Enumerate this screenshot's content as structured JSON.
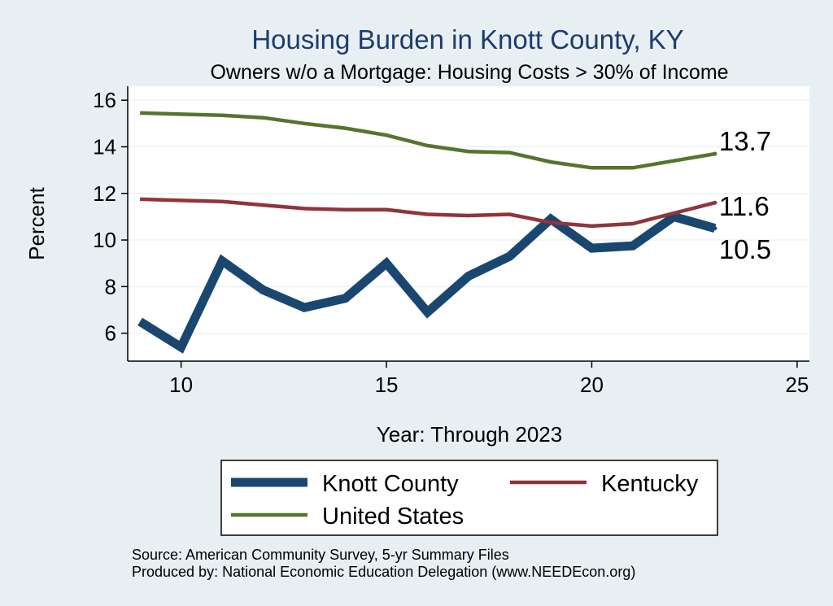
{
  "chart_data": {
    "type": "line",
    "title": "Housing Burden in Knott County, KY",
    "subtitle": "Owners w/o a Mortgage: Housing Costs > 30% of Income",
    "xlabel": "Year: Through 2023",
    "ylabel": "Percent",
    "xlim": [
      8.7,
      25.3
    ],
    "ylim": [
      4.8,
      16.6
    ],
    "xticks": [
      10,
      15,
      20,
      25
    ],
    "yticks": [
      6,
      8,
      10,
      12,
      14,
      16
    ],
    "grid": true,
    "legend_position": "bottom",
    "x": [
      9,
      10,
      11,
      12,
      13,
      14,
      15,
      16,
      17,
      18,
      19,
      20,
      21,
      22,
      23
    ],
    "series": [
      {
        "name": "Knott County",
        "color": "#1a476f",
        "values": [
          6.5,
          5.4,
          9.1,
          7.85,
          7.1,
          7.5,
          9.0,
          6.9,
          8.45,
          9.3,
          10.9,
          9.65,
          9.75,
          11.0,
          10.5
        ],
        "end_label": "10.5"
      },
      {
        "name": "Kentucky",
        "color": "#90353b",
        "values": [
          11.75,
          11.7,
          11.65,
          11.5,
          11.35,
          11.3,
          11.3,
          11.1,
          11.05,
          11.1,
          10.75,
          10.6,
          10.7,
          11.15,
          11.6
        ],
        "end_label": "11.6"
      },
      {
        "name": "United States",
        "color": "#55752f",
        "values": [
          15.45,
          15.4,
          15.35,
          15.25,
          15.0,
          14.8,
          14.5,
          14.05,
          13.8,
          13.75,
          13.35,
          13.1,
          13.1,
          13.4,
          13.7
        ],
        "end_label": "13.7"
      }
    ],
    "notes": [
      "Source: American Community Survey, 5-yr Summary Files",
      "Produced by: National Economic Education Delegation (www.NEEDEcon.org)"
    ]
  }
}
